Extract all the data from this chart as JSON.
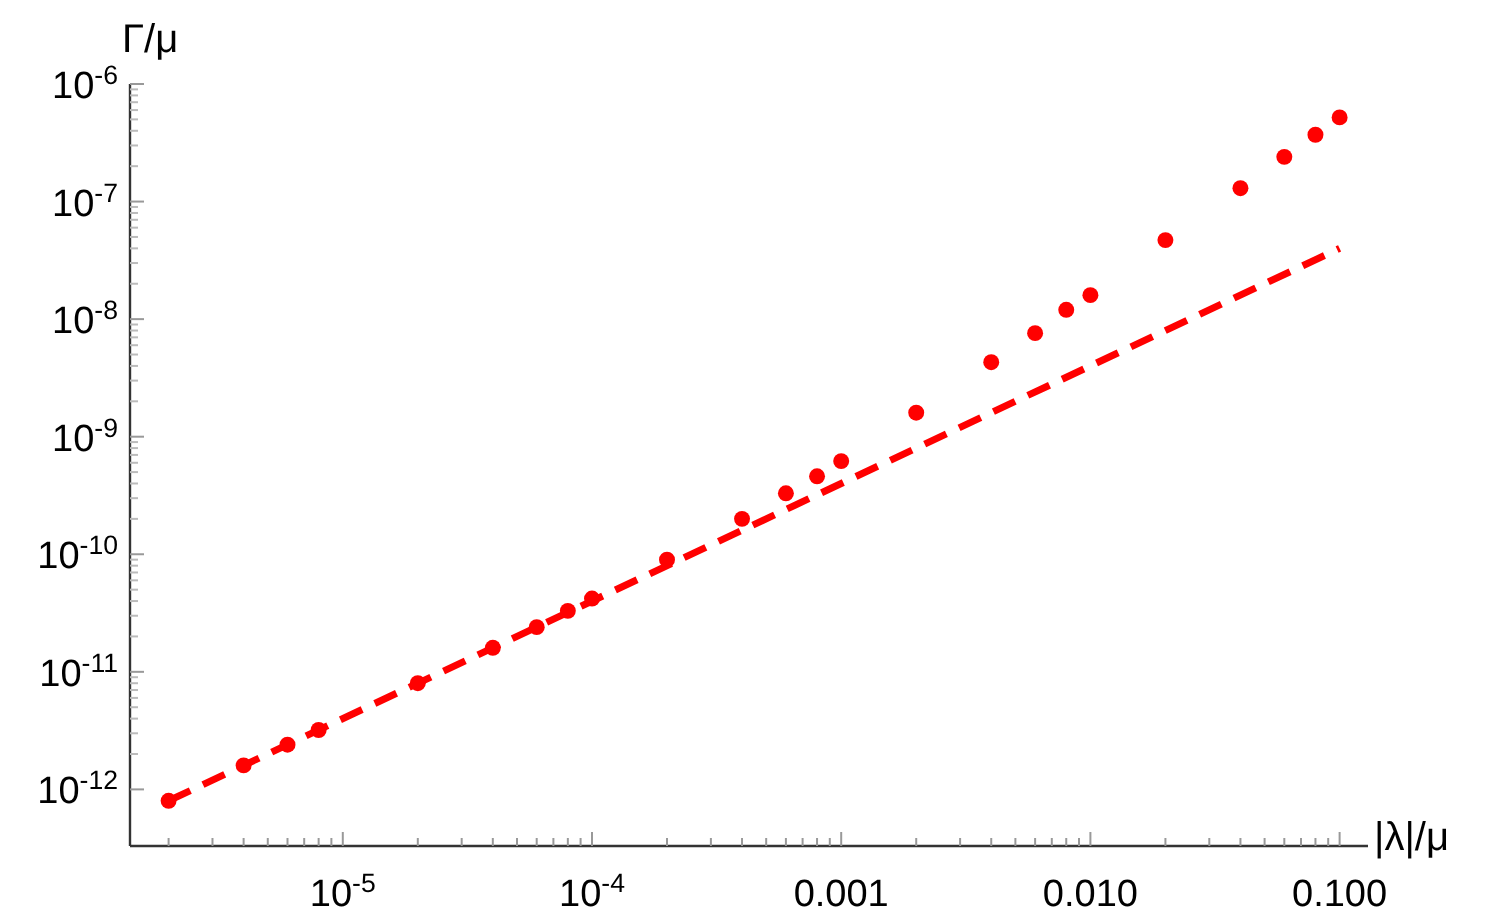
{
  "chart_data": {
    "type": "scatter",
    "xlabel": "|λ|/μ",
    "ylabel": "Γ/μ",
    "log": "xy",
    "grid": false,
    "xlim": [
      1.4e-06,
      0.13
    ],
    "ylim": [
      3.3e-13,
      1e-06
    ],
    "xticks": [
      {
        "value": 2e-06,
        "label": null
      },
      {
        "value": 3e-06,
        "label": null
      },
      {
        "value": 4e-06,
        "label": null
      },
      {
        "value": 5e-06,
        "label": null
      },
      {
        "value": 6e-06,
        "label": null
      },
      {
        "value": 7e-06,
        "label": null
      },
      {
        "value": 8e-06,
        "label": null
      },
      {
        "value": 9e-06,
        "label": null
      },
      {
        "value": 1e-05,
        "label": "10$^{-5}$"
      },
      {
        "value": 2e-05,
        "label": null
      },
      {
        "value": 3e-05,
        "label": null
      },
      {
        "value": 4e-05,
        "label": null
      },
      {
        "value": 5e-05,
        "label": null
      },
      {
        "value": 6e-05,
        "label": null
      },
      {
        "value": 7e-05,
        "label": null
      },
      {
        "value": 8e-05,
        "label": null
      },
      {
        "value": 9e-05,
        "label": null
      },
      {
        "value": 0.0001,
        "label": "10$^{-4}$"
      },
      {
        "value": 0.0002,
        "label": null
      },
      {
        "value": 0.0003,
        "label": null
      },
      {
        "value": 0.0004,
        "label": null
      },
      {
        "value": 0.0005,
        "label": null
      },
      {
        "value": 0.0006,
        "label": null
      },
      {
        "value": 0.0007,
        "label": null
      },
      {
        "value": 0.0008,
        "label": null
      },
      {
        "value": 0.0009,
        "label": null
      },
      {
        "value": 0.001,
        "label": "0.001"
      },
      {
        "value": 0.002,
        "label": null
      },
      {
        "value": 0.003,
        "label": null
      },
      {
        "value": 0.004,
        "label": null
      },
      {
        "value": 0.005,
        "label": null
      },
      {
        "value": 0.006,
        "label": null
      },
      {
        "value": 0.007,
        "label": null
      },
      {
        "value": 0.008,
        "label": null
      },
      {
        "value": 0.009,
        "label": null
      },
      {
        "value": 0.01,
        "label": "0.010"
      },
      {
        "value": 0.02,
        "label": null
      },
      {
        "value": 0.03,
        "label": null
      },
      {
        "value": 0.04,
        "label": null
      },
      {
        "value": 0.05,
        "label": null
      },
      {
        "value": 0.06,
        "label": null
      },
      {
        "value": 0.07,
        "label": null
      },
      {
        "value": 0.08,
        "label": null
      },
      {
        "value": 0.09,
        "label": null
      },
      {
        "value": 0.1,
        "label": "0.100"
      }
    ],
    "yticks": [
      {
        "value": 1e-12,
        "label": "10$^{-12}$"
      },
      {
        "value": 1e-11,
        "label": "10$^{-11}$"
      },
      {
        "value": 1e-10,
        "label": "10$^{-10}$"
      },
      {
        "value": 1e-09,
        "label": "10$^{-9}$"
      },
      {
        "value": 1e-08,
        "label": "10$^{-8}$"
      },
      {
        "value": 1e-07,
        "label": "10$^{-7}$"
      },
      {
        "value": 1e-06,
        "label": "10$^{-6}$"
      }
    ],
    "series": [
      {
        "type": "line",
        "color": "#ff0000",
        "line_style": "dashed",
        "marker": "none",
        "x": [
          2e-06,
          0.1
        ],
        "values": [
          8e-13,
          4e-08
        ]
      },
      {
        "color": "#ff0000",
        "marker": "circle",
        "x": [
          2e-06,
          4e-06,
          6e-06,
          8e-06,
          2e-05,
          4e-05,
          6e-05,
          8e-05,
          0.0001,
          0.0002,
          0.0004,
          0.0006,
          0.0008,
          0.001,
          0.002,
          0.004,
          0.006,
          0.008,
          0.01,
          0.02,
          0.04,
          0.06,
          0.08,
          0.1
        ],
        "values": [
          8e-13,
          1.6e-12,
          2.4e-12,
          3.2e-12,
          8e-12,
          1.6e-11,
          2.4e-11,
          3.3e-11,
          4.2e-11,
          9e-11,
          2e-10,
          3.3e-10,
          4.6e-10,
          6.2e-10,
          1.6e-09,
          4.3e-09,
          7.6e-09,
          1.2e-08,
          1.6e-08,
          4.7e-08,
          1.3e-07,
          2.4e-07,
          3.7e-07,
          5.2e-07
        ]
      }
    ]
  }
}
